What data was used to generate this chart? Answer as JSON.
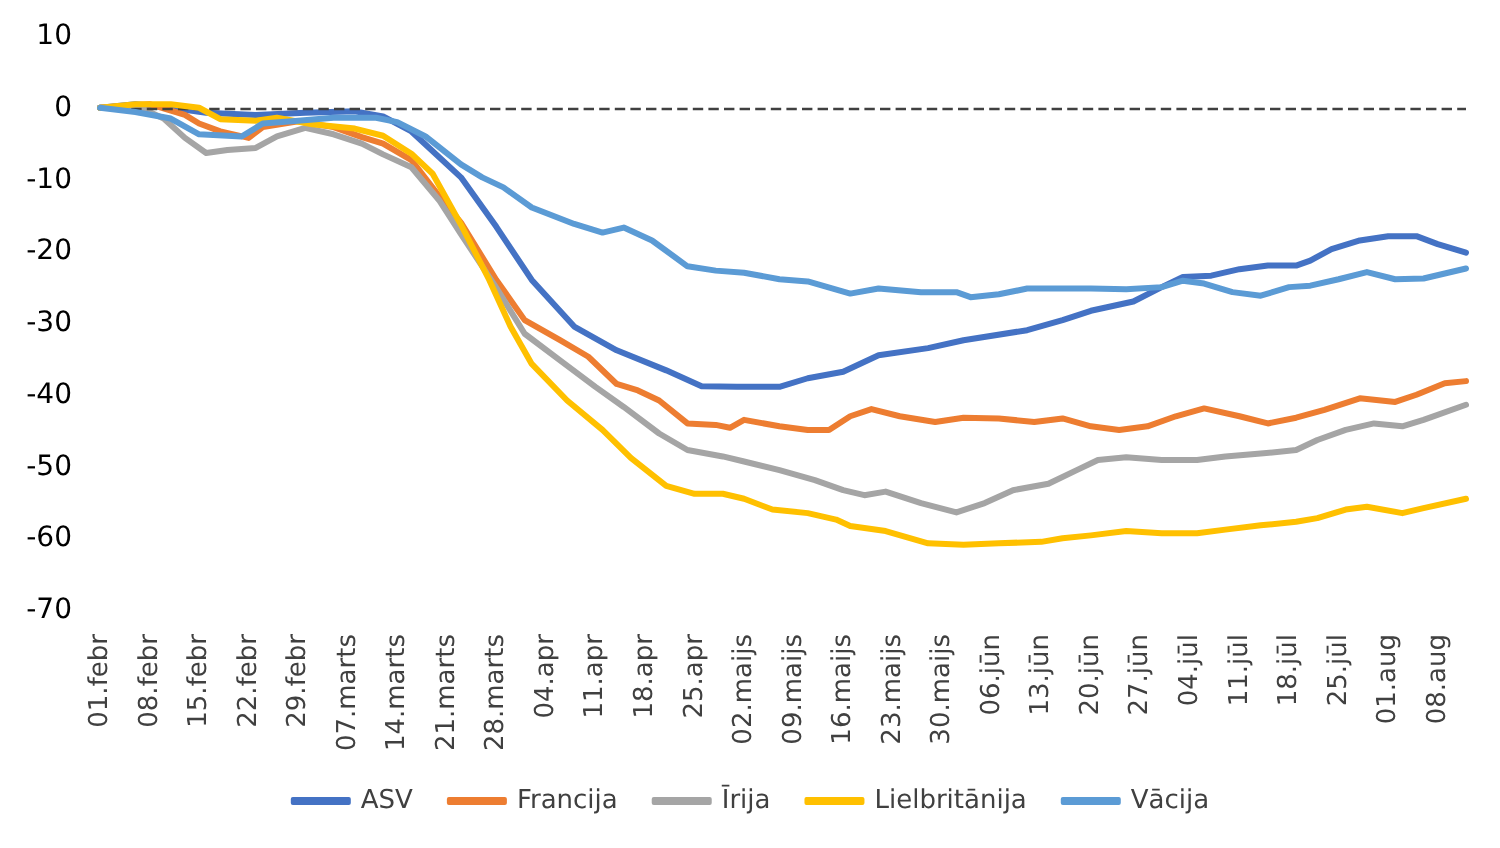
{
  "chart_data": {
    "type": "line",
    "xlim": [
      "--02-01",
      "--08-12"
    ],
    "xticks": [
      {
        "value": "--02-01",
        "label": "01.febr"
      },
      {
        "value": "--02-08",
        "label": "08.febr"
      },
      {
        "value": "--02-15",
        "label": "15.febr"
      },
      {
        "value": "--02-22",
        "label": "22.febr"
      },
      {
        "value": "--02-29",
        "label": "29.febr"
      },
      {
        "value": "--03-07",
        "label": "07.marts"
      },
      {
        "value": "--03-14",
        "label": "14.marts"
      },
      {
        "value": "--03-21",
        "label": "21.marts"
      },
      {
        "value": "--03-28",
        "label": "28.marts"
      },
      {
        "value": "--04-04",
        "label": "04.apr"
      },
      {
        "value": "--04-11",
        "label": "11.apr"
      },
      {
        "value": "--04-18",
        "label": "18.apr"
      },
      {
        "value": "--04-25",
        "label": "25.apr"
      },
      {
        "value": "--05-02",
        "label": "02.maijs"
      },
      {
        "value": "--05-09",
        "label": "09.maijs"
      },
      {
        "value": "--05-16",
        "label": "16.maijs"
      },
      {
        "value": "--05-23",
        "label": "23.maijs"
      },
      {
        "value": "--05-30",
        "label": "30.maijs"
      },
      {
        "value": "--06-06",
        "label": "06.jūn"
      },
      {
        "value": "--06-13",
        "label": "13.jūn"
      },
      {
        "value": "--06-20",
        "label": "20.jūn"
      },
      {
        "value": "--06-27",
        "label": "27.jūn"
      },
      {
        "value": "--07-04",
        "label": "04.jūl"
      },
      {
        "value": "--07-11",
        "label": "11.jūl"
      },
      {
        "value": "--07-18",
        "label": "18.jūl"
      },
      {
        "value": "--07-25",
        "label": "25.jūl"
      },
      {
        "value": "--08-01",
        "label": "01.aug"
      },
      {
        "value": "--08-08",
        "label": "08.aug"
      }
    ],
    "ylim": [
      -70,
      10
    ],
    "yticks": [
      -70,
      -60,
      -50,
      -40,
      -30,
      -20,
      -10,
      0,
      10
    ],
    "grid": false,
    "legend": "bottom",
    "line_style": "solid",
    "ref_lines": [
      {
        "axis": "y",
        "value": 0,
        "color": "#404040",
        "line_style": "dashed"
      }
    ],
    "series": [
      {
        "name": "ASV",
        "color": "#4472c4",
        "x": [
          "--02-01",
          "--02-06",
          "--02-11",
          "--02-16",
          "--02-23",
          "--03-01",
          "--03-08",
          "--03-12",
          "--03-16",
          "--03-23",
          "--03-28",
          "--04-02",
          "--04-08",
          "--04-14",
          "--04-21",
          "--04-26",
          "--05-01",
          "--05-07",
          "--05-11",
          "--05-16",
          "--05-21",
          "--05-28",
          "--06-02",
          "--06-11",
          "--06-16",
          "--06-20",
          "--06-26",
          "--06-30",
          "--07-03",
          "--07-07",
          "--07-11",
          "--07-15",
          "--07-19",
          "--07-21",
          "--07-24",
          "--07-28",
          "--08-01",
          "--08-05",
          "--08-08",
          "--08-12"
        ],
        "values": [
          0,
          0.5,
          0,
          -0.7,
          -1,
          -0.7,
          -0.5,
          -1.2,
          -3.3,
          -9.7,
          -16.6,
          -24,
          -30.5,
          -33.8,
          -36.6,
          -38.8,
          -38.9,
          -38.9,
          -37.7,
          -36.8,
          -34.5,
          -33.5,
          -32.4,
          -31,
          -29.6,
          -28.3,
          -27,
          -25,
          -23.6,
          -23.4,
          -22.5,
          -22,
          -22,
          -21.3,
          -19.7,
          -18.5,
          -17.9,
          -17.9,
          -19,
          -20.2
        ]
      },
      {
        "name": "Francija",
        "color": "#ed7d31",
        "x": [
          "--02-01",
          "--02-08",
          "--02-13",
          "--02-15",
          "--02-18",
          "--02-22",
          "--02-24",
          "--02-29",
          "--03-05",
          "--03-09",
          "--03-12",
          "--03-16",
          "--03-20",
          "--03-23",
          "--03-28",
          "--04-01",
          "--04-06",
          "--04-10",
          "--04-14",
          "--04-17",
          "--04-20",
          "--04-24",
          "--04-28",
          "--04-30",
          "--05-02",
          "--05-07",
          "--05-11",
          "--05-14",
          "--05-17",
          "--05-20",
          "--05-24",
          "--05-29",
          "--06-02",
          "--06-07",
          "--06-12",
          "--06-16",
          "--06-20",
          "--06-24",
          "--06-28",
          "--07-02",
          "--07-06",
          "--07-11",
          "--07-15",
          "--07-19",
          "--07-23",
          "--07-28",
          "--08-02",
          "--08-05",
          "--08-09",
          "--08-12"
        ],
        "values": [
          0,
          0.5,
          -1,
          -2.2,
          -3.3,
          -4.2,
          -2.7,
          -1.9,
          -2.7,
          -4.1,
          -5,
          -7.3,
          -12.4,
          -16,
          -24,
          -29.6,
          -32.4,
          -34.7,
          -38.5,
          -39.4,
          -40.8,
          -44,
          -44.2,
          -44.6,
          -43.5,
          -44.4,
          -44.9,
          -44.9,
          -43,
          -42,
          -43,
          -43.8,
          -43.2,
          -43.3,
          -43.8,
          -43.3,
          -44.4,
          -44.9,
          -44.4,
          -43,
          -41.9,
          -43,
          -44,
          -43.2,
          -42.1,
          -40.5,
          -41,
          -40,
          -38.4,
          -38.1
        ]
      },
      {
        "name": "Īrija",
        "color": "#a5a5a5",
        "x": [
          "--02-01",
          "--02-06",
          "--02-10",
          "--02-13",
          "--02-16",
          "--02-19",
          "--02-23",
          "--02-26",
          "--03-01",
          "--03-05",
          "--03-09",
          "--03-12",
          "--03-16",
          "--03-20",
          "--03-23",
          "--03-28",
          "--04-01",
          "--04-06",
          "--04-11",
          "--04-15",
          "--04-20",
          "--04-24",
          "--04-29",
          "--05-02",
          "--05-07",
          "--05-12",
          "--05-16",
          "--05-19",
          "--05-22",
          "--05-27",
          "--06-01",
          "--06-05",
          "--06-09",
          "--06-14",
          "--06-18",
          "--06-21",
          "--06-25",
          "--06-30",
          "--07-05",
          "--07-09",
          "--07-14",
          "--07-19",
          "--07-22",
          "--07-26",
          "--07-30",
          "--08-03",
          "--08-06",
          "--08-12"
        ],
        "values": [
          0,
          0.3,
          -1.5,
          -4.2,
          -6.3,
          -5.9,
          -5.6,
          -4,
          -2.8,
          -3.7,
          -5,
          -6.5,
          -8.3,
          -13,
          -17.6,
          -25.1,
          -31.5,
          -35.2,
          -38.9,
          -41.7,
          -45.4,
          -47.7,
          -48.6,
          -49.3,
          -50.5,
          -51.9,
          -53.3,
          -54,
          -53.5,
          -55.1,
          -56.4,
          -55.1,
          -53.3,
          -52.4,
          -50.5,
          -49.1,
          -48.7,
          -49.1,
          -49.1,
          -48.6,
          -48.2,
          -47.7,
          -46.3,
          -44.9,
          -44,
          -44.4,
          -43.5,
          -41.4
        ]
      },
      {
        "name": "Lielbritānija",
        "color": "#ffc000",
        "x": [
          "--02-01",
          "--02-06",
          "--02-11",
          "--02-15",
          "--02-18",
          "--02-23",
          "--02-26",
          "--03-02",
          "--03-08",
          "--03-12",
          "--03-16",
          "--03-19",
          "--03-23",
          "--03-27",
          "--03-30",
          "--04-02",
          "--04-07",
          "--04-12",
          "--04-16",
          "--04-21",
          "--04-25",
          "--04-29",
          "--05-02",
          "--05-06",
          "--05-11",
          "--05-15",
          "--05-17",
          "--05-22",
          "--05-28",
          "--06-02",
          "--06-07",
          "--06-13",
          "--06-16",
          "--06-20",
          "--06-25",
          "--06-30",
          "--07-05",
          "--07-09",
          "--07-14",
          "--07-19",
          "--07-22",
          "--07-26",
          "--07-29",
          "--08-03",
          "--08-06",
          "--08-12"
        ],
        "values": [
          0,
          0.5,
          0.5,
          0,
          -1.6,
          -1.8,
          -1.4,
          -2.3,
          -2.9,
          -3.9,
          -6.4,
          -9.2,
          -16.3,
          -24,
          -30.5,
          -35.7,
          -40.8,
          -44.9,
          -48.8,
          -52.7,
          -53.8,
          -53.8,
          -54.5,
          -56,
          -56.5,
          -57.4,
          -58.3,
          -59,
          -60.7,
          -60.9,
          -60.7,
          -60.5,
          -60,
          -59.6,
          -59,
          -59.3,
          -59.3,
          -58.8,
          -58.2,
          -57.7,
          -57.2,
          -56,
          -55.6,
          -56.5,
          -55.8,
          -54.5
        ]
      },
      {
        "name": "Vācija",
        "color": "#5b9bd5",
        "x": [
          "--02-01",
          "--02-06",
          "--02-11",
          "--02-15",
          "--02-21",
          "--02-24",
          "--02-29",
          "--03-05",
          "--03-11",
          "--03-14",
          "--03-18",
          "--03-23",
          "--03-26",
          "--03-29",
          "--04-02",
          "--04-08",
          "--04-12",
          "--04-15",
          "--04-19",
          "--04-24",
          "--04-28",
          "--05-02",
          "--05-07",
          "--05-11",
          "--05-17",
          "--05-21",
          "--05-27",
          "--06-01",
          "--06-03",
          "--06-07",
          "--06-11",
          "--06-16",
          "--06-20",
          "--06-25",
          "--06-30",
          "--07-03",
          "--07-06",
          "--07-10",
          "--07-14",
          "--07-18",
          "--07-21",
          "--07-25",
          "--07-29",
          "--08-02",
          "--08-06",
          "--08-12"
        ],
        "values": [
          0,
          -0.6,
          -1.5,
          -3.7,
          -4,
          -2.2,
          -1.8,
          -1.4,
          -1.4,
          -2,
          -4,
          -7.9,
          -9.7,
          -11.1,
          -13.9,
          -16.2,
          -17.4,
          -16.7,
          -18.5,
          -22.1,
          -22.7,
          -23,
          -23.9,
          -24.2,
          -25.9,
          -25.2,
          -25.7,
          -25.7,
          -26.4,
          -26,
          -25.2,
          -25.2,
          -25.2,
          -25.3,
          -25,
          -24.1,
          -24.5,
          -25.7,
          -26.2,
          -25,
          -24.8,
          -23.9,
          -22.9,
          -23.9,
          -23.8,
          -22.4
        ]
      }
    ]
  }
}
